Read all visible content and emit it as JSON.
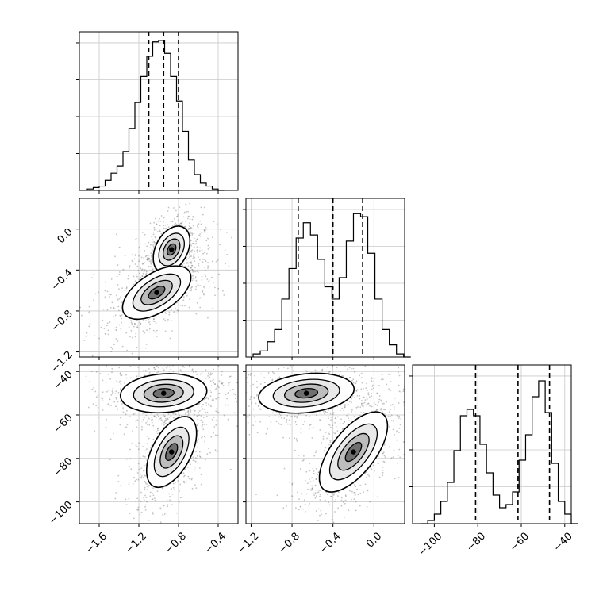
{
  "chart_data": {
    "type": "corner",
    "title": "",
    "parameters": [
      {
        "name": "",
        "xlim": [
          -1.8,
          -0.2
        ],
        "ticks": [
          -1.6,
          -1.2,
          -0.8,
          -0.4
        ],
        "tick_labels": [
          "−1.6",
          "−1.2",
          "−0.8",
          "−0.4"
        ]
      },
      {
        "name": "",
        "xlim": [
          -1.25,
          0.3
        ],
        "ticks": [
          -1.2,
          -0.8,
          -0.4,
          0.0
        ],
        "tick_labels": [
          "−1.2",
          "−0.8",
          "−0.4",
          "0.0"
        ]
      },
      {
        "name": "",
        "xlim": [
          -110,
          -37
        ],
        "ticks": [
          -100,
          -80,
          -60,
          -40
        ],
        "tick_labels": [
          "−100",
          "−80",
          "−60",
          "−40"
        ]
      }
    ],
    "histograms": [
      {
        "param": 0,
        "bins": [
          -1.72,
          -1.66,
          -1.6,
          -1.54,
          -1.48,
          -1.42,
          -1.36,
          -1.3,
          -1.24,
          -1.18,
          -1.12,
          -1.06,
          -1.0,
          -0.94,
          -0.88,
          -0.82,
          -0.76,
          -0.7,
          -0.64,
          -0.58,
          -0.52,
          -0.46,
          -0.4
        ],
        "counts": [
          1,
          2,
          3,
          7,
          12,
          17,
          27,
          43,
          61,
          79,
          93,
          103,
          104,
          95,
          79,
          62,
          41,
          21,
          11,
          5,
          3,
          1,
          0
        ],
        "quantiles": [
          -1.1,
          -0.95,
          -0.8
        ],
        "ylim": [
          0,
          110
        ]
      },
      {
        "param": 1,
        "bins": [
          -1.18,
          -1.11,
          -1.04,
          -0.97,
          -0.9,
          -0.83,
          -0.76,
          -0.69,
          -0.62,
          -0.55,
          -0.48,
          -0.41,
          -0.34,
          -0.27,
          -0.2,
          -0.13,
          -0.06,
          0.01,
          0.08,
          0.15,
          0.22,
          0.29
        ],
        "counts": [
          1,
          2,
          5,
          9,
          19,
          29,
          39,
          44,
          40,
          32,
          23,
          19,
          26,
          38,
          47,
          46,
          34,
          19,
          9,
          4,
          1,
          0
        ],
        "quantiles": [
          -0.74,
          -0.4,
          -0.11
        ],
        "ylim": [
          0,
          52
        ]
      },
      {
        "param": 2,
        "bins": [
          -106,
          -103,
          -100,
          -97,
          -94,
          -91,
          -88,
          -85,
          -82,
          -79,
          -76,
          -73,
          -70,
          -67,
          -64,
          -61,
          -58,
          -55,
          -52,
          -49,
          -46,
          -43,
          -40,
          -37
        ],
        "counts": [
          0,
          1,
          3,
          7,
          13,
          23,
          34,
          36,
          34,
          25,
          16,
          9,
          5,
          6,
          10,
          20,
          28,
          40,
          45,
          35,
          19,
          7,
          3,
          0
        ],
        "quantiles": [
          -81,
          -61.5,
          -47
        ],
        "ylim": [
          0,
          50
        ]
      }
    ],
    "pair_plots": [
      {
        "x_param": 0,
        "y_param": 1,
        "modes": [
          {
            "x": -0.87,
            "y": -0.2
          },
          {
            "x": -1.02,
            "y": -0.62
          }
        ]
      },
      {
        "x_param": 0,
        "y_param": 2,
        "modes": [
          {
            "x": -0.95,
            "y": -50
          },
          {
            "x": -0.87,
            "y": -77
          }
        ]
      },
      {
        "x_param": 1,
        "y_param": 2,
        "modes": [
          {
            "x": -0.66,
            "y": -50
          },
          {
            "x": -0.2,
            "y": -77
          }
        ]
      }
    ],
    "grid": true,
    "quantile_line_style": "dashed"
  }
}
